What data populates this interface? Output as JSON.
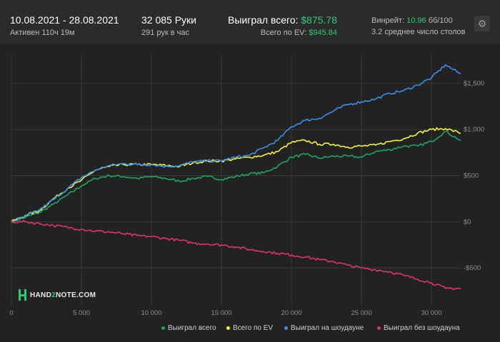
{
  "header": {
    "date_range": "10.08.2021 - 28.08.2021",
    "active_time": "Активен 110ч 19м",
    "hands": "32 085 Руки",
    "hands_per_hour": "291 рук в час",
    "won_total_label": "Выиграл всего:",
    "won_total_value": "$875.78",
    "ev_total_label": "Всего по EV:",
    "ev_total_value": "$945.84",
    "winrate_label": "Винрейт:",
    "winrate_value": "10.96",
    "winrate_unit": "бб/100",
    "avg_tables": "3.2 среднее число столов",
    "settings_icon": "gear-icon"
  },
  "logo": {
    "text_a": "HAND",
    "text_b": "2",
    "text_c": "NOTE.COM"
  },
  "colors": {
    "background": "#2b2b2b",
    "plot": "#222222",
    "grid": "#3a3a3a",
    "won_total": "#1fa55f",
    "ev": "#f4f442",
    "showdown": "#3b8fea",
    "non_showdown": "#e0336b"
  },
  "chart_data": {
    "type": "line",
    "xlim": [
      0,
      32085
    ],
    "ylim": [
      -900,
      1800
    ],
    "x_ticks": [
      0,
      5000,
      10000,
      15000,
      20000,
      25000,
      30000
    ],
    "x_tick_labels": [
      "0",
      "5 000",
      "10 000",
      "15 000",
      "20 000",
      "25 000",
      "30 000"
    ],
    "y_ticks": [
      -500,
      0,
      500,
      1000,
      1500
    ],
    "y_tick_labels": [
      "-$500",
      "$0",
      "$500",
      "$1,000",
      "$1,500"
    ],
    "grid": true,
    "legend_position": "bottom-right",
    "x": [
      0,
      1000,
      2000,
      3000,
      4000,
      5000,
      6000,
      7000,
      8000,
      9000,
      10000,
      11000,
      12000,
      13000,
      14000,
      15000,
      16000,
      17000,
      18000,
      19000,
      20000,
      21000,
      22000,
      23000,
      24000,
      25000,
      26000,
      27000,
      28000,
      29000,
      30000,
      31000,
      32085
    ],
    "series": [
      {
        "name": "Выиграл всего",
        "color": "#1fa55f",
        "values": [
          0,
          50,
          100,
          190,
          290,
          390,
          470,
          500,
          490,
          470,
          490,
          470,
          440,
          470,
          490,
          460,
          490,
          520,
          530,
          600,
          700,
          730,
          690,
          710,
          710,
          700,
          760,
          780,
          820,
          820,
          870,
          980,
          880
        ]
      },
      {
        "name": "Всего по EV",
        "color": "#f4f442",
        "values": [
          0,
          70,
          120,
          250,
          360,
          450,
          560,
          600,
          620,
          620,
          620,
          610,
          600,
          640,
          660,
          660,
          680,
          700,
          720,
          760,
          860,
          880,
          840,
          840,
          810,
          820,
          830,
          870,
          900,
          960,
          1000,
          1010,
          960
        ]
      },
      {
        "name": "Выиграл на шоудауне",
        "color": "#3b8fea",
        "values": [
          0,
          60,
          130,
          240,
          360,
          480,
          560,
          610,
          630,
          620,
          620,
          600,
          610,
          650,
          660,
          660,
          700,
          720,
          800,
          880,
          1030,
          1100,
          1120,
          1200,
          1270,
          1300,
          1330,
          1390,
          1420,
          1480,
          1560,
          1700,
          1600
        ]
      },
      {
        "name": "Выиграл без шоудауна",
        "color": "#e0336b",
        "values": [
          0,
          0,
          -20,
          -40,
          -60,
          -80,
          -100,
          -110,
          -130,
          -150,
          -160,
          -180,
          -200,
          -230,
          -240,
          -250,
          -270,
          -300,
          -320,
          -340,
          -360,
          -380,
          -410,
          -430,
          -470,
          -500,
          -520,
          -540,
          -580,
          -620,
          -660,
          -720,
          -720
        ]
      }
    ]
  }
}
